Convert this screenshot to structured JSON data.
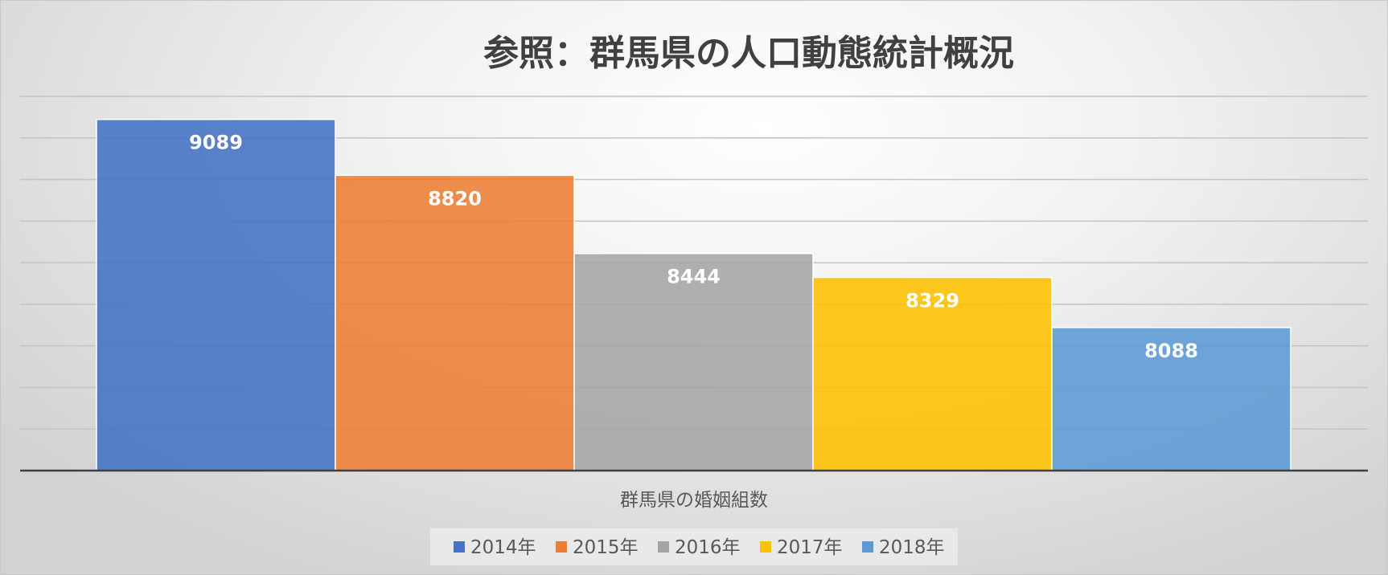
{
  "chart_data": {
    "type": "bar",
    "title": "参照：群馬県の人口動態統計概況",
    "categories": [
      "群馬県の婚姻組数"
    ],
    "series": [
      {
        "name": "2014年",
        "values": [
          9089
        ],
        "color": "#4472C4"
      },
      {
        "name": "2015年",
        "values": [
          8820
        ],
        "color": "#ED7D31"
      },
      {
        "name": "2016年",
        "values": [
          8444
        ],
        "color": "#A5A5A5"
      },
      {
        "name": "2017年",
        "values": [
          8329
        ],
        "color": "#FFC000"
      },
      {
        "name": "2018年",
        "values": [
          8088
        ],
        "color": "#5B9BD5"
      }
    ],
    "ylim": [
      7400,
      9200
    ],
    "ytick_step": 200,
    "show_y_ticks": false,
    "grid": true,
    "legend_position": "bottom",
    "data_labels": true
  }
}
